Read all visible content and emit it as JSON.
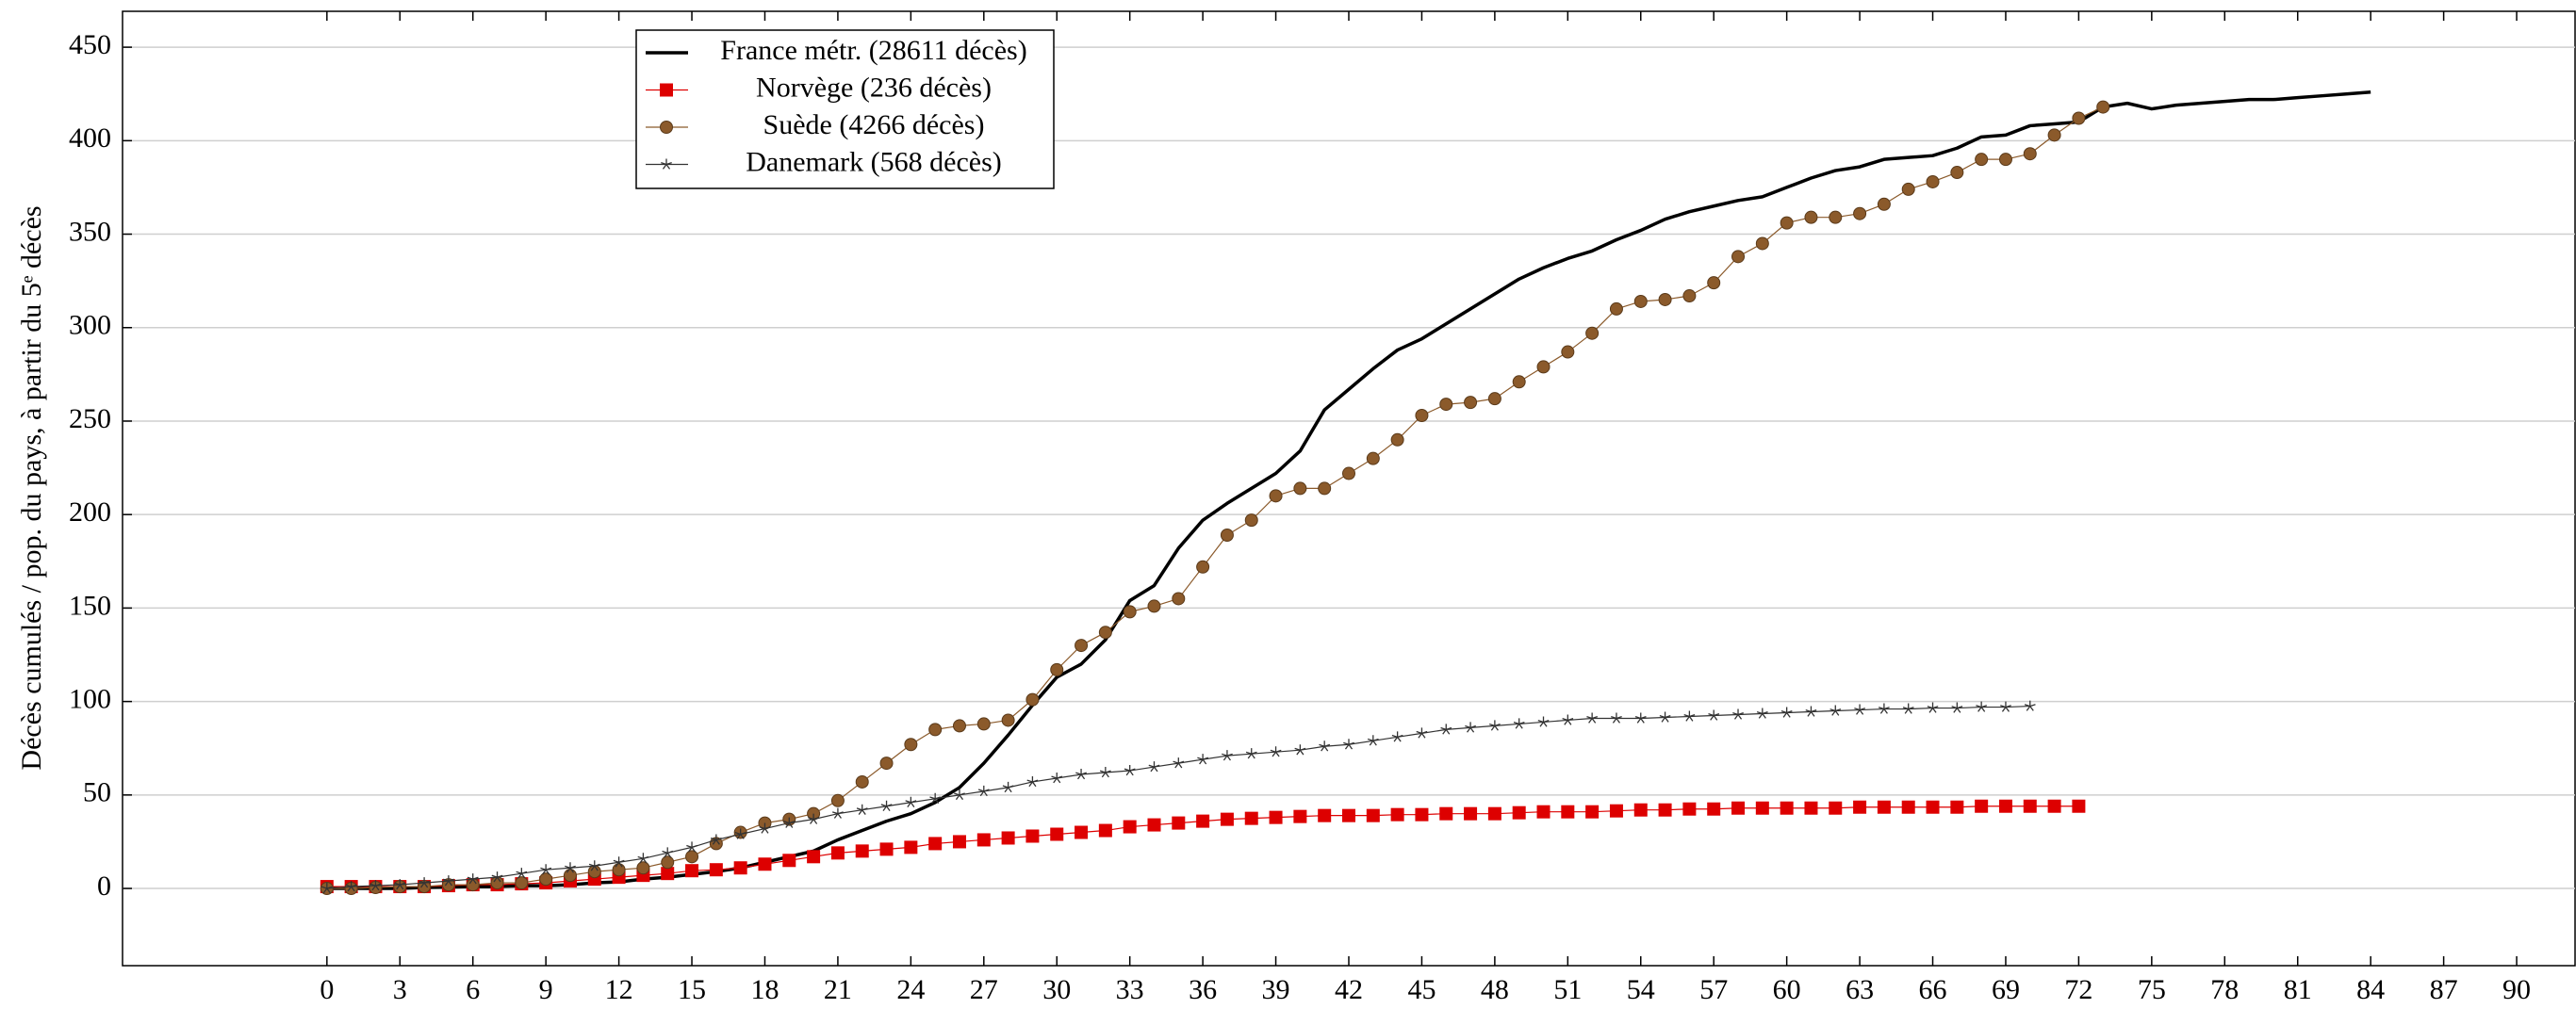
{
  "chart_data": {
    "type": "line",
    "ylabel": "Décès cumulés / pop. du pays, à partir du 5ᵉ décès",
    "xlim": [
      -8.4,
      92.4
    ],
    "ylim": [
      -41.3,
      469.2
    ],
    "xticks": [
      0,
      3,
      6,
      9,
      12,
      15,
      18,
      21,
      24,
      27,
      30,
      33,
      36,
      39,
      42,
      45,
      48,
      51,
      54,
      57,
      60,
      63,
      66,
      69,
      72,
      75,
      78,
      81,
      84,
      87,
      90
    ],
    "yticks": [
      0,
      50,
      100,
      150,
      200,
      250,
      300,
      350,
      400,
      450
    ],
    "grid": true,
    "series": [
      {
        "name": "France métr. (28611 décès)",
        "color": "#000000",
        "marker": "none",
        "x": [
          0,
          1,
          2,
          3,
          4,
          5,
          6,
          7,
          8,
          9,
          10,
          11,
          12,
          13,
          14,
          15,
          16,
          17,
          18,
          19,
          20,
          21,
          22,
          23,
          24,
          25,
          26,
          27,
          28,
          29,
          30,
          31,
          32,
          33,
          34,
          35,
          36,
          37,
          38,
          39,
          40,
          41,
          42,
          43,
          44,
          45,
          46,
          47,
          48,
          49,
          50,
          51,
          52,
          53,
          54,
          55,
          56,
          57,
          58,
          59,
          60,
          61,
          62,
          63,
          64,
          65,
          66,
          67,
          68,
          69,
          70,
          71,
          72,
          73,
          74,
          75,
          76,
          77,
          78,
          79,
          80,
          81,
          82,
          83,
          84
        ],
        "values": [
          0,
          0,
          0,
          0,
          0.5,
          0.7,
          1,
          1,
          1.5,
          1.5,
          2,
          3,
          3.5,
          5,
          6,
          7.5,
          9,
          11,
          14,
          17,
          20,
          26,
          31,
          36,
          40,
          46,
          54,
          67,
          82,
          98,
          113,
          120,
          133,
          154,
          162,
          182,
          197,
          206,
          214,
          222,
          234,
          256,
          267,
          278,
          288,
          294,
          302,
          310,
          318,
          326,
          332,
          337,
          341,
          347,
          352,
          358,
          362,
          365,
          368,
          370,
          375,
          380,
          384,
          386,
          390,
          391,
          392,
          396,
          402,
          403,
          408,
          409,
          410,
          418,
          420,
          417,
          419,
          420,
          421,
          422,
          422,
          423,
          424,
          425,
          426
        ]
      },
      {
        "name": "Norvège (236 décès)",
        "color": "#dd0000",
        "marker": "square",
        "x": [
          0,
          1,
          2,
          3,
          4,
          5,
          6,
          7,
          8,
          9,
          10,
          11,
          12,
          13,
          14,
          15,
          16,
          17,
          18,
          19,
          20,
          21,
          22,
          23,
          24,
          25,
          26,
          27,
          28,
          29,
          30,
          31,
          32,
          33,
          34,
          35,
          36,
          37,
          38,
          39,
          40,
          41,
          42,
          43,
          44,
          45,
          46,
          47,
          48,
          49,
          50,
          51,
          52,
          53,
          54,
          55,
          56,
          57,
          58,
          59,
          60,
          61,
          62,
          63,
          64,
          65,
          66,
          67,
          68,
          69,
          70,
          71,
          72
        ],
        "values": [
          1,
          1,
          1,
          1,
          1,
          1.5,
          2,
          2,
          2.5,
          3,
          4,
          5,
          6,
          7,
          8,
          9.5,
          10,
          11,
          13,
          15,
          17,
          19,
          20,
          21,
          22,
          24,
          25,
          26,
          27,
          28,
          29,
          30,
          31,
          33,
          34,
          35,
          36,
          37,
          37.5,
          38,
          38.5,
          39,
          39,
          39,
          39.5,
          39.5,
          40,
          40,
          40,
          40.5,
          41,
          41,
          41,
          41.5,
          42,
          42,
          42.5,
          42.5,
          43,
          43,
          43,
          43,
          43,
          43.5,
          43.5,
          43.5,
          43.5,
          43.5,
          44,
          44,
          44,
          44,
          44
        ]
      },
      {
        "name": "Suède (4266 décès)",
        "color": "#8b5a2b",
        "marker": "circle",
        "x": [
          0,
          1,
          2,
          3,
          4,
          5,
          6,
          7,
          8,
          9,
          10,
          11,
          12,
          13,
          14,
          15,
          16,
          17,
          18,
          19,
          20,
          21,
          22,
          23,
          24,
          25,
          26,
          27,
          28,
          29,
          30,
          31,
          32,
          33,
          34,
          35,
          36,
          37,
          38,
          39,
          40,
          41,
          42,
          43,
          44,
          45,
          46,
          47,
          48,
          49,
          50,
          51,
          52,
          53,
          54,
          55,
          56,
          57,
          58,
          59,
          60,
          61,
          62,
          63,
          64,
          65,
          66,
          67,
          68,
          69,
          70,
          71,
          72,
          73
        ],
        "values": [
          0,
          0,
          0.5,
          1,
          1,
          2,
          2,
          3,
          3,
          5,
          7,
          9,
          10,
          11,
          14,
          17,
          24,
          30,
          35,
          37,
          40,
          47,
          57,
          67,
          77,
          85,
          87,
          88,
          90,
          101,
          117,
          130,
          137,
          148,
          151,
          155,
          172,
          189,
          197,
          210,
          214,
          214,
          222,
          230,
          240,
          253,
          259,
          260,
          262,
          271,
          279,
          287,
          297,
          310,
          314,
          315,
          317,
          324,
          338,
          345,
          356,
          359,
          359,
          361,
          366,
          374,
          378,
          383,
          390,
          390,
          393,
          403,
          412,
          418
        ]
      },
      {
        "name": "Danemark (568 décès)",
        "color": "#333333",
        "marker": "star",
        "x": [
          0,
          1,
          2,
          3,
          4,
          5,
          6,
          7,
          8,
          9,
          10,
          11,
          12,
          13,
          14,
          15,
          16,
          17,
          18,
          19,
          20,
          21,
          22,
          23,
          24,
          25,
          26,
          27,
          28,
          29,
          30,
          31,
          32,
          33,
          34,
          35,
          36,
          37,
          38,
          39,
          40,
          41,
          42,
          43,
          44,
          45,
          46,
          47,
          48,
          49,
          50,
          51,
          52,
          53,
          54,
          55,
          56,
          57,
          58,
          59,
          60,
          61,
          62,
          63,
          64,
          65,
          66,
          67,
          68,
          69,
          70
        ],
        "values": [
          0,
          1,
          1.5,
          2,
          3,
          4,
          5,
          6,
          8,
          10,
          11,
          12,
          14,
          16,
          19,
          22,
          26,
          29,
          32,
          35,
          37,
          40,
          42,
          44,
          46,
          48,
          50,
          52,
          54,
          57,
          59,
          61,
          62,
          63,
          65,
          67,
          69,
          71,
          72,
          73,
          74,
          76,
          77,
          79,
          81,
          83,
          85,
          86,
          87,
          88,
          89,
          90,
          91,
          91,
          91,
          91.5,
          92,
          92.5,
          93,
          93.5,
          94,
          94.5,
          95,
          95.5,
          96,
          96,
          96.5,
          96.5,
          97,
          97,
          97.5
        ]
      }
    ]
  }
}
